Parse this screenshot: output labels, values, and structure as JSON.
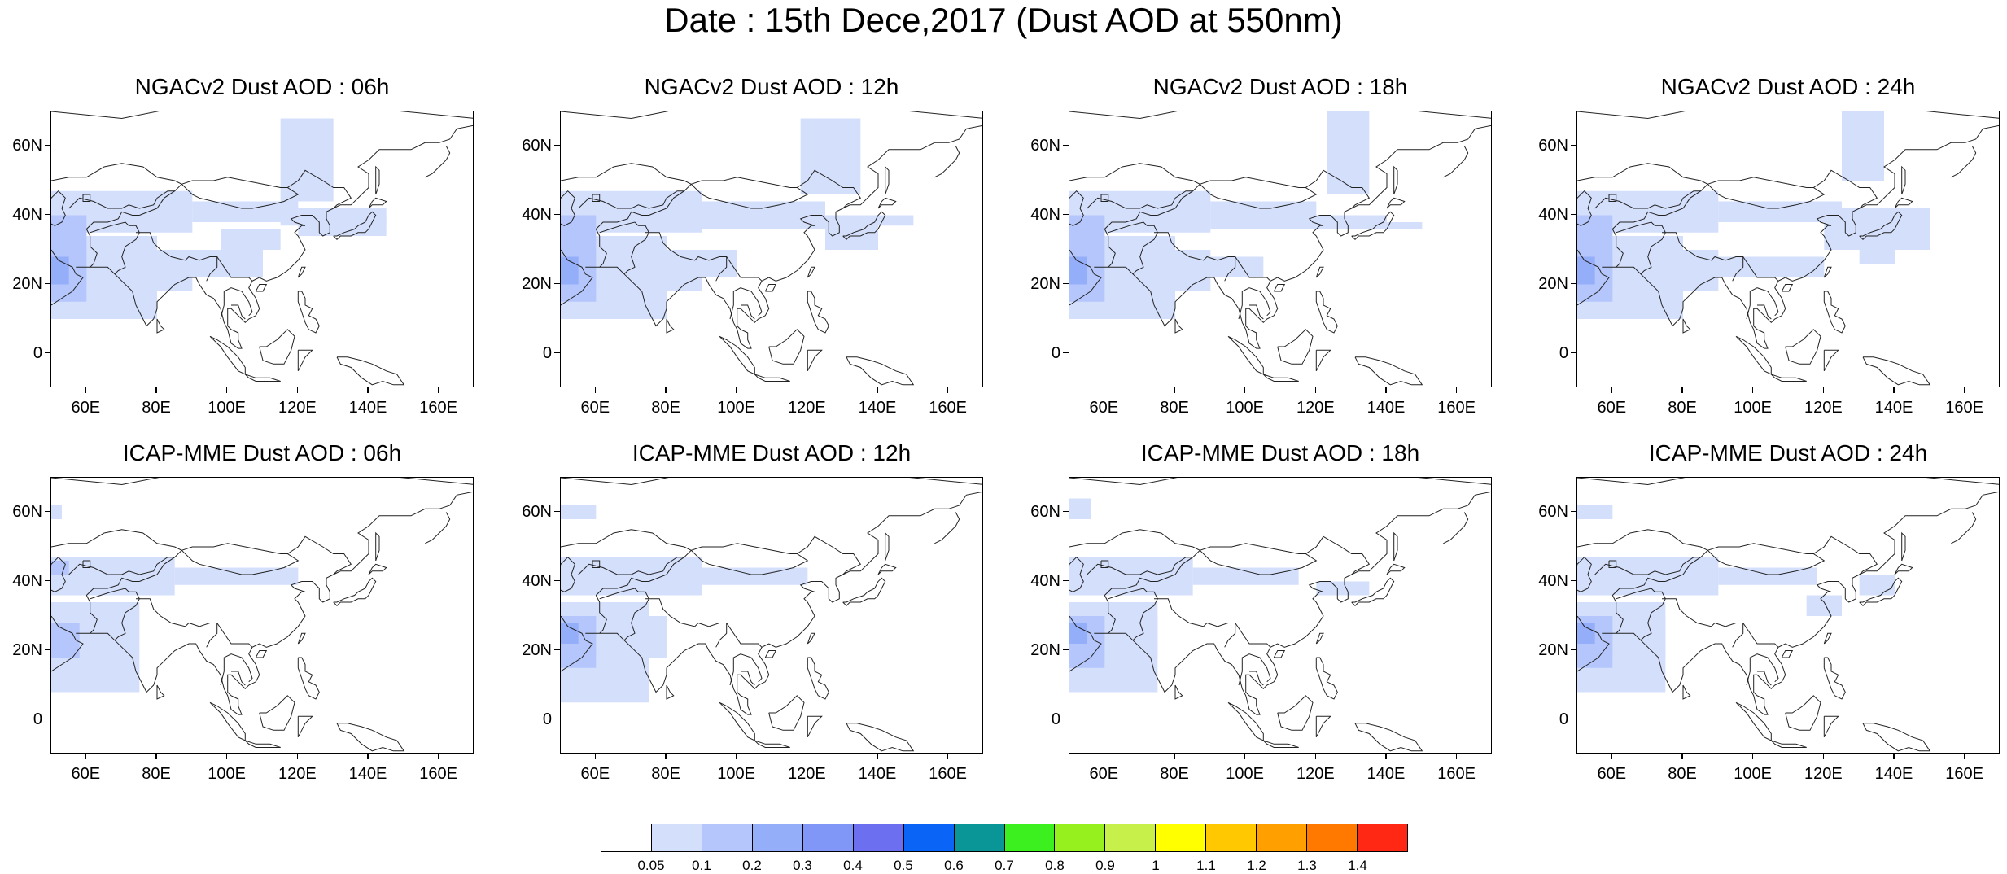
{
  "title": "Date : 15th Dece,2017 (Dust AOD at 550nm)",
  "panels": [
    {
      "title": "NGACv2 Dust AOD : 06h",
      "model": "NGACv2",
      "hour": 6
    },
    {
      "title": "NGACv2 Dust AOD : 12h",
      "model": "NGACv2",
      "hour": 12
    },
    {
      "title": "NGACv2 Dust AOD : 18h",
      "model": "NGACv2",
      "hour": 18
    },
    {
      "title": "NGACv2 Dust AOD : 24h",
      "model": "NGACv2",
      "hour": 24
    },
    {
      "title": "ICAP-MME Dust AOD : 06h",
      "model": "ICAP-MME",
      "hour": 6
    },
    {
      "title": "ICAP-MME Dust AOD : 12h",
      "model": "ICAP-MME",
      "hour": 12
    },
    {
      "title": "ICAP-MME Dust AOD : 18h",
      "model": "ICAP-MME",
      "hour": 18
    },
    {
      "title": "ICAP-MME Dust AOD : 24h",
      "model": "ICAP-MME",
      "hour": 24
    }
  ],
  "y_ticks": [
    "60N",
    "40N",
    "20N",
    "0"
  ],
  "y_tick_values": [
    60,
    40,
    20,
    0
  ],
  "x_ticks": [
    "60E",
    "80E",
    "100E",
    "120E",
    "140E",
    "160E"
  ],
  "x_tick_values": [
    60,
    80,
    100,
    120,
    140,
    160
  ],
  "lon_range": [
    50,
    170
  ],
  "lat_range": [
    -10,
    70
  ],
  "colorbar": {
    "labels": [
      "0.05",
      "0.1",
      "0.2",
      "0.3",
      "0.4",
      "0.5",
      "0.6",
      "0.7",
      "0.8",
      "0.9",
      "1",
      "1.1",
      "1.2",
      "1.3",
      "1.4"
    ],
    "colors": [
      "#ffffff",
      "#d4dffc",
      "#b4c6fb",
      "#95aefa",
      "#8197f7",
      "#6c70f0",
      "#0a64f5",
      "#0a9696",
      "#3cf020",
      "#96f01e",
      "#c8f04a",
      "#ffff00",
      "#ffc800",
      "#ffa000",
      "#ff7800",
      "#ff2814"
    ]
  }
}
